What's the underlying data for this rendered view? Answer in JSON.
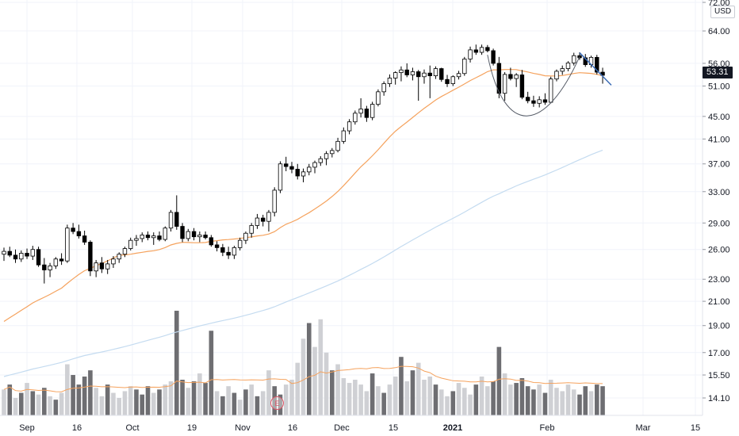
{
  "header": {
    "currency": "USD"
  },
  "last_price": "53.31",
  "earnings_marker": "E",
  "colors": {
    "up": "#ffffff",
    "down": "#000000",
    "wick": "#000000",
    "ma_short": "#f5a25d",
    "ma_long": "#c4dbf0",
    "vol_up": "#cfd0d4",
    "vol_down": "#6e6e72",
    "vol_ma": "#f5a25d",
    "trend_line": "#3a6bb5",
    "cup": "#555b66",
    "grid": "#f0f3fa"
  },
  "chart_data": {
    "type": "candlestick",
    "y_scale": "log",
    "price_ticks": [
      "72.00",
      "64.00",
      "56.00",
      "51.00",
      "45.00",
      "41.00",
      "37.00",
      "33.00",
      "29.00",
      "26.00",
      "23.00",
      "21.00",
      "19.00",
      "17.00",
      "15.50",
      "14.10"
    ],
    "x_ticks": [
      {
        "label": "Sep",
        "bold": false
      },
      {
        "label": "16",
        "bold": false
      },
      {
        "label": "Oct",
        "bold": false
      },
      {
        "label": "19",
        "bold": false
      },
      {
        "label": "Nov",
        "bold": false
      },
      {
        "label": "16",
        "bold": false
      },
      {
        "label": "Dec",
        "bold": false
      },
      {
        "label": "15",
        "bold": false
      },
      {
        "label": "2021",
        "bold": true
      },
      {
        "label": "Feb",
        "bold": false
      },
      {
        "label": "Mar",
        "bold": false
      },
      {
        "label": "15",
        "bold": false
      }
    ],
    "candles": [
      [
        25.5,
        26.2,
        24.8,
        25.8
      ],
      [
        25.8,
        26.3,
        25.2,
        25.4
      ],
      [
        25.4,
        26.0,
        24.6,
        25.0
      ],
      [
        25.0,
        25.9,
        24.7,
        25.6
      ],
      [
        25.6,
        26.1,
        25.0,
        25.3
      ],
      [
        25.3,
        26.4,
        24.9,
        26.0
      ],
      [
        26.0,
        26.3,
        24.2,
        24.4
      ],
      [
        24.4,
        25.1,
        22.6,
        23.9
      ],
      [
        23.9,
        24.6,
        23.2,
        24.3
      ],
      [
        24.3,
        25.2,
        24.0,
        25.0
      ],
      [
        25.0,
        25.6,
        24.4,
        24.8
      ],
      [
        24.8,
        28.8,
        24.6,
        28.4
      ],
      [
        28.4,
        29.0,
        27.7,
        28.0
      ],
      [
        28.0,
        28.8,
        27.2,
        27.5
      ],
      [
        27.5,
        28.1,
        26.5,
        26.8
      ],
      [
        26.8,
        27.0,
        23.3,
        23.8
      ],
      [
        23.8,
        24.9,
        23.2,
        24.6
      ],
      [
        24.6,
        25.2,
        23.6,
        24.0
      ],
      [
        24.0,
        24.9,
        23.5,
        24.5
      ],
      [
        24.5,
        25.3,
        24.1,
        25.0
      ],
      [
        25.0,
        25.7,
        24.6,
        25.5
      ],
      [
        25.5,
        26.3,
        25.2,
        26.1
      ],
      [
        26.1,
        27.3,
        25.9,
        27.0
      ],
      [
        27.0,
        27.6,
        26.4,
        27.2
      ],
      [
        27.2,
        27.9,
        26.8,
        27.6
      ],
      [
        27.6,
        28.0,
        27.0,
        27.3
      ],
      [
        27.3,
        27.9,
        26.5,
        27.5
      ],
      [
        27.5,
        28.0,
        26.9,
        27.1
      ],
      [
        27.1,
        28.6,
        26.9,
        28.4
      ],
      [
        28.4,
        30.6,
        28.0,
        30.3
      ],
      [
        30.3,
        32.5,
        28.2,
        28.6
      ],
      [
        28.6,
        29.0,
        26.8,
        27.2
      ],
      [
        27.2,
        28.3,
        26.9,
        28.0
      ],
      [
        28.0,
        28.4,
        27.0,
        27.4
      ],
      [
        27.4,
        28.0,
        26.8,
        27.6
      ],
      [
        27.6,
        28.0,
        27.1,
        27.3
      ],
      [
        27.3,
        27.6,
        26.3,
        26.5
      ],
      [
        26.5,
        26.9,
        25.8,
        26.2
      ],
      [
        26.2,
        26.6,
        25.3,
        25.7
      ],
      [
        25.7,
        26.3,
        25.0,
        25.4
      ],
      [
        25.4,
        26.4,
        25.0,
        26.2
      ],
      [
        26.2,
        27.3,
        25.9,
        27.0
      ],
      [
        27.0,
        28.0,
        26.6,
        27.8
      ],
      [
        27.8,
        29.0,
        27.3,
        28.7
      ],
      [
        28.7,
        30.1,
        28.3,
        29.6
      ],
      [
        29.6,
        30.0,
        28.6,
        29.2
      ],
      [
        29.2,
        30.6,
        28.0,
        30.3
      ],
      [
        30.3,
        33.6,
        29.8,
        33.2
      ],
      [
        33.2,
        37.4,
        32.8,
        37.0
      ],
      [
        37.0,
        38.1,
        35.9,
        36.6
      ],
      [
        36.6,
        37.3,
        35.6,
        36.2
      ],
      [
        36.2,
        37.0,
        34.7,
        35.2
      ],
      [
        35.2,
        36.3,
        34.3,
        35.8
      ],
      [
        35.8,
        37.0,
        35.3,
        36.5
      ],
      [
        36.5,
        37.5,
        35.6,
        37.2
      ],
      [
        37.2,
        38.2,
        36.7,
        37.8
      ],
      [
        37.8,
        39.0,
        36.8,
        38.6
      ],
      [
        38.6,
        39.5,
        38.0,
        39.1
      ],
      [
        39.1,
        41.2,
        38.8,
        40.6
      ],
      [
        40.6,
        43.0,
        40.2,
        42.4
      ],
      [
        42.4,
        44.5,
        41.8,
        44.0
      ],
      [
        44.0,
        46.1,
        43.5,
        45.6
      ],
      [
        45.6,
        48.5,
        44.8,
        46.4
      ],
      [
        46.4,
        47.0,
        44.0,
        44.8
      ],
      [
        44.8,
        47.8,
        44.3,
        47.3
      ],
      [
        47.3,
        50.3,
        46.9,
        49.8
      ],
      [
        49.8,
        52.0,
        49.0,
        51.5
      ],
      [
        51.5,
        53.5,
        50.8,
        52.7
      ],
      [
        52.7,
        54.2,
        51.3,
        53.9
      ],
      [
        53.9,
        55.3,
        52.0,
        54.5
      ],
      [
        54.5,
        56.0,
        52.9,
        53.4
      ],
      [
        53.4,
        55.0,
        52.2,
        54.1
      ],
      [
        54.1,
        54.5,
        48.0,
        53.0
      ],
      [
        53.0,
        54.6,
        51.5,
        53.8
      ],
      [
        53.8,
        55.5,
        48.5,
        53.2
      ],
      [
        53.2,
        55.3,
        52.5,
        54.8
      ],
      [
        54.8,
        55.0,
        51.9,
        52.4
      ],
      [
        52.4,
        53.4,
        50.8,
        51.5
      ],
      [
        51.5,
        53.3,
        51.0,
        53.0
      ],
      [
        53.0,
        54.3,
        52.4,
        53.7
      ],
      [
        53.7,
        57.5,
        53.2,
        57.0
      ],
      [
        57.0,
        60.0,
        56.2,
        59.2
      ],
      [
        59.2,
        60.5,
        58.0,
        58.6
      ],
      [
        58.6,
        60.5,
        58.0,
        59.8
      ],
      [
        59.8,
        60.4,
        58.6,
        59.0
      ],
      [
        59.0,
        59.5,
        55.5,
        56.0
      ],
      [
        56.0,
        57.5,
        48.5,
        49.5
      ],
      [
        49.5,
        54.0,
        48.0,
        53.5
      ],
      [
        53.5,
        55.0,
        52.2,
        52.6
      ],
      [
        52.6,
        53.8,
        50.8,
        53.4
      ],
      [
        53.4,
        54.5,
        48.3,
        48.7
      ],
      [
        48.7,
        49.8,
        47.5,
        48.0
      ],
      [
        48.0,
        49.0,
        46.8,
        47.5
      ],
      [
        47.5,
        48.9,
        46.7,
        48.2
      ],
      [
        48.2,
        49.5,
        47.2,
        47.7
      ],
      [
        47.7,
        53.0,
        47.5,
        52.5
      ],
      [
        52.5,
        54.6,
        52.0,
        54.2
      ],
      [
        54.2,
        55.5,
        53.4,
        54.8
      ],
      [
        54.8,
        56.5,
        54.2,
        56.1
      ],
      [
        56.1,
        58.5,
        55.5,
        57.8
      ],
      [
        57.8,
        58.6,
        56.8,
        57.3
      ],
      [
        57.3,
        58.2,
        55.2,
        55.7
      ],
      [
        55.7,
        57.8,
        55.0,
        57.4
      ],
      [
        57.4,
        58.0,
        53.5,
        54.0
      ],
      [
        54.0,
        55.0,
        51.5,
        53.31
      ]
    ],
    "volumes": [
      [
        14.6,
        "up"
      ],
      [
        14.9,
        "down"
      ],
      [
        14.1,
        "up"
      ],
      [
        14.4,
        "down"
      ],
      [
        15.0,
        "up"
      ],
      [
        14.5,
        "down"
      ],
      [
        14.3,
        "up"
      ],
      [
        14.7,
        "down"
      ],
      [
        14.2,
        "up"
      ],
      [
        14.0,
        "down"
      ],
      [
        14.4,
        "up"
      ],
      [
        16.2,
        "up"
      ],
      [
        15.5,
        "down"
      ],
      [
        14.9,
        "down"
      ],
      [
        15.4,
        "down"
      ],
      [
        15.8,
        "down"
      ],
      [
        14.7,
        "up"
      ],
      [
        14.2,
        "up"
      ],
      [
        14.9,
        "down"
      ],
      [
        14.4,
        "up"
      ],
      [
        14.1,
        "up"
      ],
      [
        14.5,
        "up"
      ],
      [
        14.8,
        "up"
      ],
      [
        14.6,
        "down"
      ],
      [
        14.3,
        "down"
      ],
      [
        14.8,
        "down"
      ],
      [
        14.4,
        "up"
      ],
      [
        14.6,
        "down"
      ],
      [
        14.9,
        "up"
      ],
      [
        15.1,
        "up"
      ],
      [
        20.2,
        "down"
      ],
      [
        15.2,
        "down"
      ],
      [
        14.7,
        "up"
      ],
      [
        15.1,
        "down"
      ],
      [
        15.6,
        "up"
      ],
      [
        15.0,
        "down"
      ],
      [
        18.6,
        "down"
      ],
      [
        14.5,
        "up"
      ],
      [
        14.2,
        "down"
      ],
      [
        14.8,
        "up"
      ],
      [
        14.4,
        "down"
      ],
      [
        14.0,
        "up"
      ],
      [
        14.6,
        "down"
      ],
      [
        14.9,
        "up"
      ],
      [
        14.2,
        "down"
      ],
      [
        14.5,
        "up"
      ],
      [
        15.8,
        "up"
      ],
      [
        14.8,
        "down"
      ],
      [
        14.3,
        "down"
      ],
      [
        14.9,
        "up"
      ],
      [
        15.2,
        "up"
      ],
      [
        16.3,
        "up"
      ],
      [
        18.0,
        "up"
      ],
      [
        19.2,
        "down"
      ],
      [
        17.4,
        "up"
      ],
      [
        19.5,
        "up"
      ],
      [
        17.0,
        "up"
      ],
      [
        15.8,
        "down"
      ],
      [
        16.2,
        "up"
      ],
      [
        15.3,
        "up"
      ],
      [
        15.0,
        "up"
      ],
      [
        15.2,
        "up"
      ],
      [
        14.9,
        "up"
      ],
      [
        14.5,
        "up"
      ],
      [
        15.6,
        "down"
      ],
      [
        14.8,
        "up"
      ],
      [
        14.4,
        "down"
      ],
      [
        14.9,
        "up"
      ],
      [
        15.4,
        "up"
      ],
      [
        16.7,
        "down"
      ],
      [
        15.1,
        "up"
      ],
      [
        15.8,
        "down"
      ],
      [
        16.3,
        "up"
      ],
      [
        15.2,
        "up"
      ],
      [
        15.4,
        "up"
      ],
      [
        14.9,
        "down"
      ],
      [
        14.6,
        "up"
      ],
      [
        14.2,
        "up"
      ],
      [
        14.5,
        "down"
      ],
      [
        15.0,
        "up"
      ],
      [
        14.7,
        "up"
      ],
      [
        14.3,
        "up"
      ],
      [
        14.9,
        "down"
      ],
      [
        15.4,
        "up"
      ],
      [
        14.8,
        "up"
      ],
      [
        15.1,
        "down"
      ],
      [
        17.4,
        "down"
      ],
      [
        15.6,
        "up"
      ],
      [
        14.9,
        "up"
      ],
      [
        15.0,
        "down"
      ],
      [
        15.3,
        "down"
      ],
      [
        14.8,
        "down"
      ],
      [
        14.6,
        "down"
      ],
      [
        14.9,
        "up"
      ],
      [
        14.4,
        "down"
      ],
      [
        15.2,
        "up"
      ],
      [
        14.7,
        "up"
      ],
      [
        14.5,
        "up"
      ],
      [
        14.9,
        "up"
      ],
      [
        14.6,
        "up"
      ],
      [
        14.3,
        "down"
      ],
      [
        14.8,
        "down"
      ],
      [
        14.5,
        "up"
      ],
      [
        14.9,
        "down"
      ],
      [
        14.8,
        "down"
      ]
    ]
  }
}
